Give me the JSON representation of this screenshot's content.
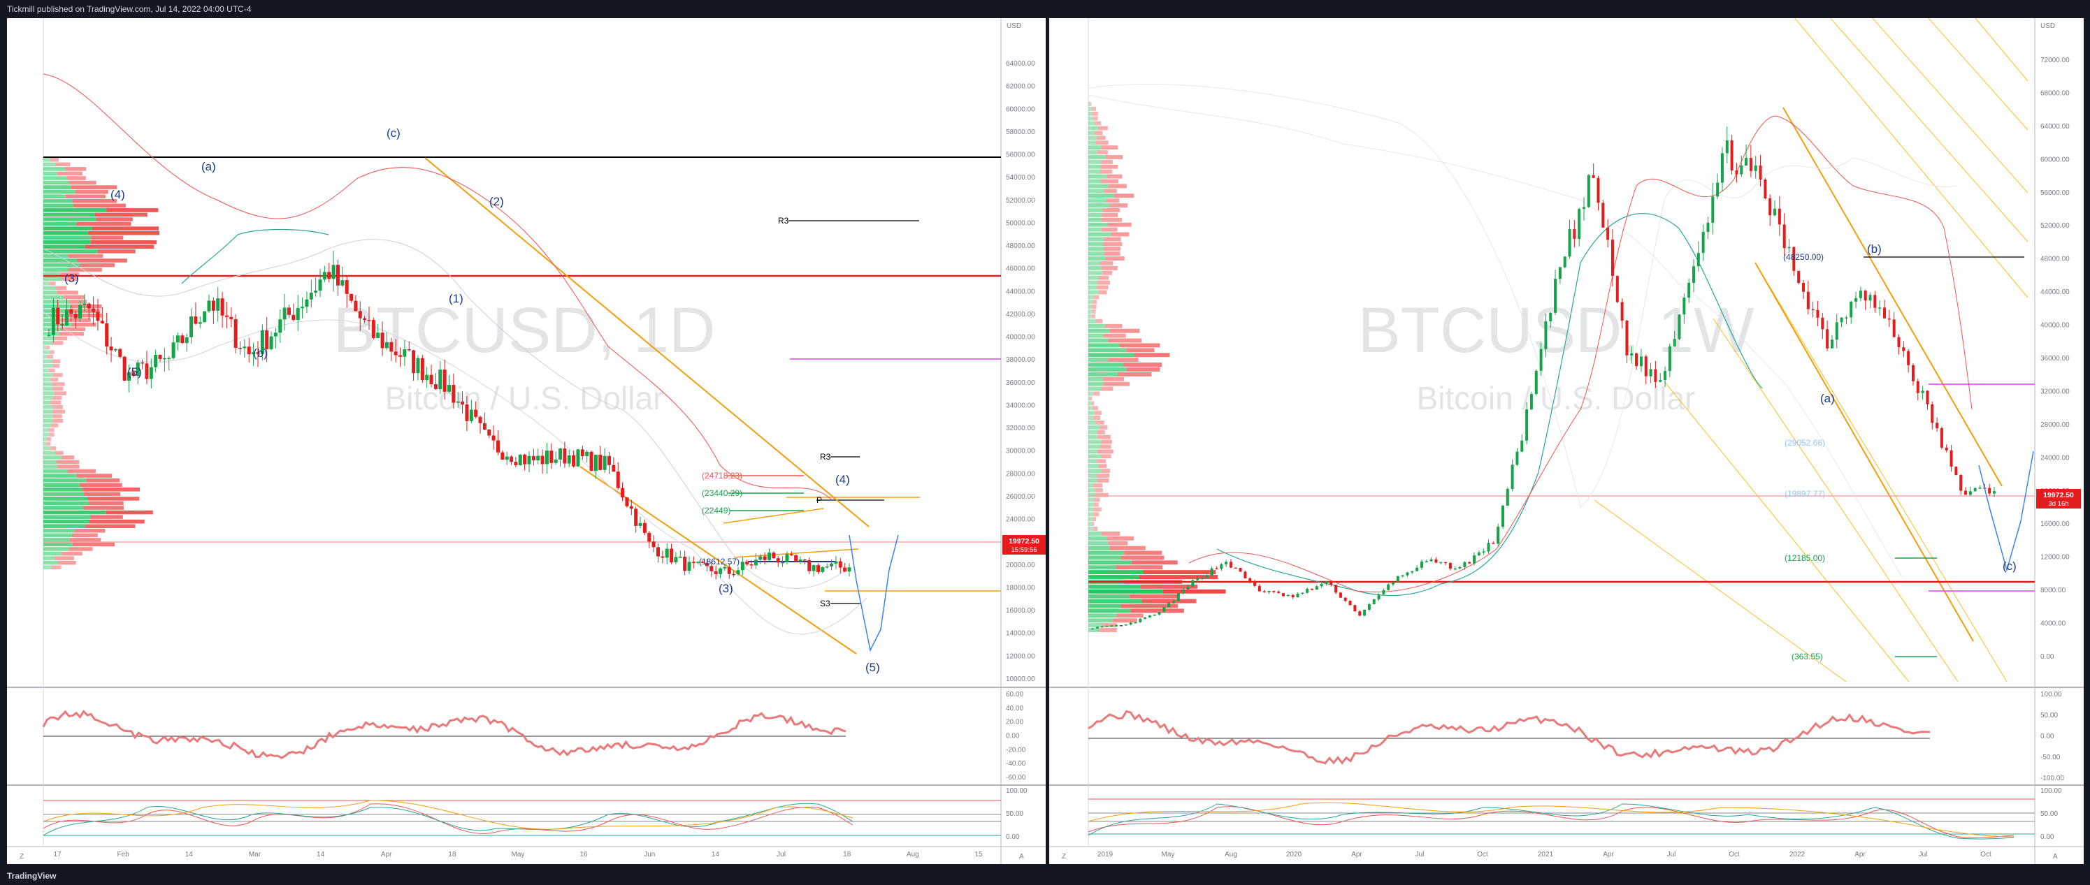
{
  "header": {
    "text": "Tickmill published on TradingView.com, Jul 14, 2022 04:00 UTC-4"
  },
  "footer": {
    "brand": "TradingView"
  },
  "colors": {
    "up": "#26a69a",
    "down": "#ef5350",
    "channel": "#f59e0b",
    "wave_label": "#1e3a8a"
  },
  "panels": [
    {
      "id": "left",
      "watermark": {
        "symbol": "BTCUSD, 1D",
        "name": "Bitcoin / U.S. Dollar"
      },
      "currency": "USD",
      "price_ticks": [
        "64000.00",
        "62000.00",
        "60000.00",
        "58000.00",
        "56000.00",
        "54000.00",
        "52000.00",
        "50000.00",
        "48000.00",
        "46000.00",
        "44000.00",
        "42000.00",
        "40000.00",
        "38000.00",
        "36000.00",
        "34000.00",
        "32000.00",
        "30000.00",
        "28000.00",
        "26000.00",
        "24000.00",
        "22000.00",
        "20000.00",
        "18000.00",
        "16000.00",
        "14000.00",
        "12000.00",
        "10000.00"
      ],
      "time_ticks": [
        "17",
        "Feb",
        "14",
        "Mar",
        "14",
        "Apr",
        "18",
        "May",
        "16",
        "Jun",
        "14",
        "Jul",
        "18",
        "Aug",
        "15"
      ],
      "price_badge": {
        "price": "19972.50",
        "countdown": "15:59:56"
      },
      "wave_labels": [
        "(a)",
        "(4)",
        "(3)",
        "(5)",
        "(b)",
        "(c)",
        "(2)",
        "(1)",
        "(3)",
        "(4)",
        "(5)"
      ],
      "levels": [
        "(24718.23)",
        "(23440.29)",
        "(22449)",
        "(18612.57)"
      ],
      "pivots": [
        "R3",
        "R3",
        "P",
        "S3"
      ],
      "osc1_ticks": [
        "60.00",
        "40.00",
        "20.00",
        "0.00",
        "-20.00",
        "-40.00",
        "-60.00"
      ],
      "osc2_ticks": [
        "100.00",
        "50.00",
        "0.00"
      ],
      "corner": {
        "left": "Z",
        "right": "A"
      }
    },
    {
      "id": "right",
      "watermark": {
        "symbol": "BTCUSD, 1W",
        "name": "Bitcoin / U.S. Dollar"
      },
      "currency": "USD",
      "price_ticks": [
        "72000.00",
        "68000.00",
        "64000.00",
        "60000.00",
        "56000.00",
        "52000.00",
        "48000.00",
        "44000.00",
        "40000.00",
        "36000.00",
        "32000.00",
        "28000.00",
        "24000.00",
        "20000.00",
        "16000.00",
        "12000.00",
        "8000.00",
        "4000.00",
        "0.00"
      ],
      "time_ticks": [
        "2019",
        "May",
        "Aug",
        "2020",
        "Apr",
        "Jul",
        "Oct",
        "2021",
        "Apr",
        "Jul",
        "Oct",
        "2022",
        "Apr",
        "Jul",
        "Oct"
      ],
      "price_badge": {
        "price": "19972.50",
        "countdown": "3d 16h"
      },
      "wave_labels": [
        "(b)",
        "(a)",
        "(c)"
      ],
      "levels": [
        "(48250.00)",
        "(29052.66)",
        "(19897.77)",
        "(12185.00)",
        "(363.55)"
      ],
      "osc1_ticks": [
        "100.00",
        "50.00",
        "0.00",
        "-50.00",
        "-100.00"
      ],
      "osc2_ticks": [
        "100.00",
        "50.00",
        "0.00"
      ],
      "corner": {
        "left": "Z",
        "right": "A"
      }
    }
  ],
  "chart_data": [
    {
      "type": "candlestick",
      "title": "BTCUSD, 1D",
      "ylim": [
        10000,
        65000
      ],
      "x": [
        "17",
        "Feb",
        "14",
        "Mar",
        "14",
        "Apr",
        "18",
        "May",
        "16",
        "Jun",
        "14",
        "Jul",
        "18",
        "Aug",
        "15"
      ],
      "close_path": [
        42000,
        43000,
        37000,
        38500,
        44000,
        39000,
        42500,
        46500,
        41000,
        38500,
        36000,
        31000,
        29500,
        30000,
        29000,
        22000,
        20000,
        19500,
        21000,
        20000,
        19972.5
      ],
      "last_price": 19972.5
    },
    {
      "type": "candlestick",
      "title": "BTCUSD, 1W",
      "ylim": [
        0,
        72000
      ],
      "x": [
        "2019",
        "May",
        "Aug",
        "2020",
        "Apr",
        "Jul",
        "Oct",
        "2021",
        "Apr",
        "Jul",
        "Oct",
        "2022",
        "Apr",
        "Jul",
        "Oct"
      ],
      "close_path": [
        3500,
        3800,
        5300,
        9000,
        11500,
        8000,
        7200,
        9000,
        5000,
        9200,
        11500,
        10700,
        13800,
        29000,
        47000,
        58000,
        37000,
        33000,
        48000,
        61000,
        57000,
        47000,
        38000,
        45000,
        39000,
        30000,
        20000,
        19972.5
      ],
      "last_price": 19972.5
    }
  ]
}
